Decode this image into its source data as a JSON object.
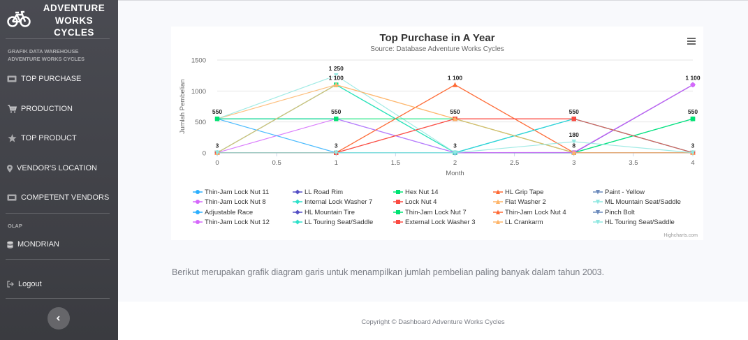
{
  "sidebar": {
    "brand": [
      "ADVENTURE",
      "WORKS",
      "CYCLES"
    ],
    "heading1": [
      "GRAFIK DATA WAREHOUSE",
      "ADVENTURE WORKS CYCLES"
    ],
    "items": [
      {
        "label": "TOP PURCHASE",
        "icon": "video-card-icon"
      },
      {
        "label": "PRODUCTION",
        "icon": "cart-icon"
      },
      {
        "label": "TOP PRODUCT",
        "icon": "star-icon"
      },
      {
        "label": "VENDOR'S LOCATION",
        "icon": "map-pin-icon"
      },
      {
        "label": "COMPETENT VENDORS",
        "icon": "video-card-icon"
      }
    ],
    "heading2": "OLAP",
    "olap_item": {
      "label": "MONDRIAN",
      "icon": "database-icon"
    },
    "logout": {
      "label": "Logout",
      "icon": "logout-icon"
    }
  },
  "chart_data": {
    "type": "line",
    "title": "Top Purchase in A Year",
    "subtitle": "Source: Database Adventure Works Cycles",
    "xlabel": "Month",
    "ylabel": "Jumlah Pembelian",
    "xlim": [
      0,
      4
    ],
    "ylim": [
      0,
      1500
    ],
    "x_ticks": [
      "0",
      "0.5",
      "1",
      "1.5",
      "2",
      "2.5",
      "3",
      "3.5",
      "4"
    ],
    "y_ticks": [
      "0",
      "500",
      "1000",
      "1500"
    ],
    "x": [
      0,
      1,
      2,
      3,
      4
    ],
    "legend_position": "bottom",
    "credit": "Highcharts.com",
    "series": [
      {
        "name": "Thin-Jam Lock Nut 11",
        "color": "#2caffe",
        "marker": "circle",
        "values": [
          550,
          550,
          3,
          550,
          3
        ]
      },
      {
        "name": "LL Road Rim",
        "color": "#544fc5",
        "marker": "diamond",
        "values": [
          3,
          3,
          3,
          3,
          1100
        ]
      },
      {
        "name": "Hex Nut 14",
        "color": "#00e272",
        "marker": "square",
        "values": [
          3,
          1100,
          3,
          3,
          550
        ]
      },
      {
        "name": "HL Grip Tape",
        "color": "#fe6a35",
        "marker": "triangle",
        "values": [
          3,
          3,
          1100,
          3,
          3
        ]
      },
      {
        "name": "Paint - Yellow",
        "color": "#6b8abc",
        "marker": "triangle-down",
        "values": [
          3,
          3,
          3,
          3,
          3
        ]
      },
      {
        "name": "Thin-Jam Lock Nut 8",
        "color": "#d568fb",
        "marker": "circle",
        "values": [
          3,
          550,
          3,
          3,
          1100
        ]
      },
      {
        "name": "Internal Lock Washer 7",
        "color": "#2ee0ca",
        "marker": "diamond",
        "values": [
          3,
          1100,
          3,
          3,
          550
        ]
      },
      {
        "name": "Lock Nut 4",
        "color": "#fa4b42",
        "marker": "square",
        "values": [
          3,
          3,
          550,
          550,
          3
        ]
      },
      {
        "name": "Flat Washer 2",
        "color": "#feb56a",
        "marker": "triangle",
        "values": [
          550,
          1100,
          550,
          3,
          3
        ]
      },
      {
        "name": "ML Mountain Seat/Saddle",
        "color": "#91e8e1",
        "marker": "triangle-down",
        "values": [
          550,
          1250,
          3,
          3,
          3
        ]
      },
      {
        "name": "Adjustable Race",
        "color": "#2caffe",
        "marker": "circle",
        "values": [
          550,
          3,
          3,
          550,
          3
        ]
      },
      {
        "name": "HL Mountain Tire",
        "color": "#544fc5",
        "marker": "diamond",
        "values": [
          3,
          3,
          3,
          3,
          1100
        ]
      },
      {
        "name": "Thin-Jam Lock Nut 7",
        "color": "#00e272",
        "marker": "square",
        "values": [
          550,
          550,
          550,
          3,
          550
        ]
      },
      {
        "name": "Thin-Jam Lock Nut 4",
        "color": "#fe6a35",
        "marker": "triangle",
        "values": [
          3,
          3,
          1100,
          3,
          3
        ]
      },
      {
        "name": "Pinch Bolt",
        "color": "#6b8abc",
        "marker": "triangle-down",
        "values": [
          3,
          3,
          3,
          3,
          3
        ]
      },
      {
        "name": "Thin-Jam Lock Nut 12",
        "color": "#d568fb",
        "marker": "circle",
        "values": [
          3,
          3,
          3,
          8,
          1100
        ]
      },
      {
        "name": "LL Touring Seat/Saddle",
        "color": "#2ee0ca",
        "marker": "diamond",
        "values": [
          3,
          3,
          3,
          550,
          3
        ]
      },
      {
        "name": "External Lock Washer 3",
        "color": "#fa4b42",
        "marker": "square",
        "values": [
          3,
          3,
          550,
          550,
          3
        ]
      },
      {
        "name": "LL Crankarm",
        "color": "#feb56a",
        "marker": "triangle",
        "values": [
          3,
          1100,
          550,
          3,
          3
        ]
      },
      {
        "name": "HL Touring Seat/Saddle",
        "color": "#91e8e1",
        "marker": "triangle-down",
        "values": [
          3,
          3,
          3,
          180,
          3
        ]
      }
    ],
    "data_labels": [
      {
        "x": 0,
        "text": "550",
        "y": 550
      },
      {
        "x": 0,
        "text": "3",
        "y": 3
      },
      {
        "x": 1,
        "text": "1 250",
        "y": 1250
      },
      {
        "x": 1,
        "text": "1 100",
        "y": 1100
      },
      {
        "x": 1,
        "text": "550",
        "y": 550
      },
      {
        "x": 1,
        "text": "3",
        "y": 3
      },
      {
        "x": 2,
        "text": "1 100",
        "y": 1100
      },
      {
        "x": 2,
        "text": "550",
        "y": 550
      },
      {
        "x": 2,
        "text": "3",
        "y": 3
      },
      {
        "x": 3,
        "text": "550",
        "y": 550
      },
      {
        "x": 3,
        "text": "180",
        "y": 180
      },
      {
        "x": 3,
        "text": "8",
        "y": 8
      },
      {
        "x": 4,
        "text": "1 100",
        "y": 1100
      },
      {
        "x": 4,
        "text": "550",
        "y": 550
      },
      {
        "x": 4,
        "text": "3",
        "y": 3
      }
    ]
  },
  "caption": "Berikut merupakan grafik diagram garis untuk menampilkan jumlah pembelian paling banyak dalam tahun 2003.",
  "footer": "Copyright © Dashboard Adventure Works Cycles"
}
